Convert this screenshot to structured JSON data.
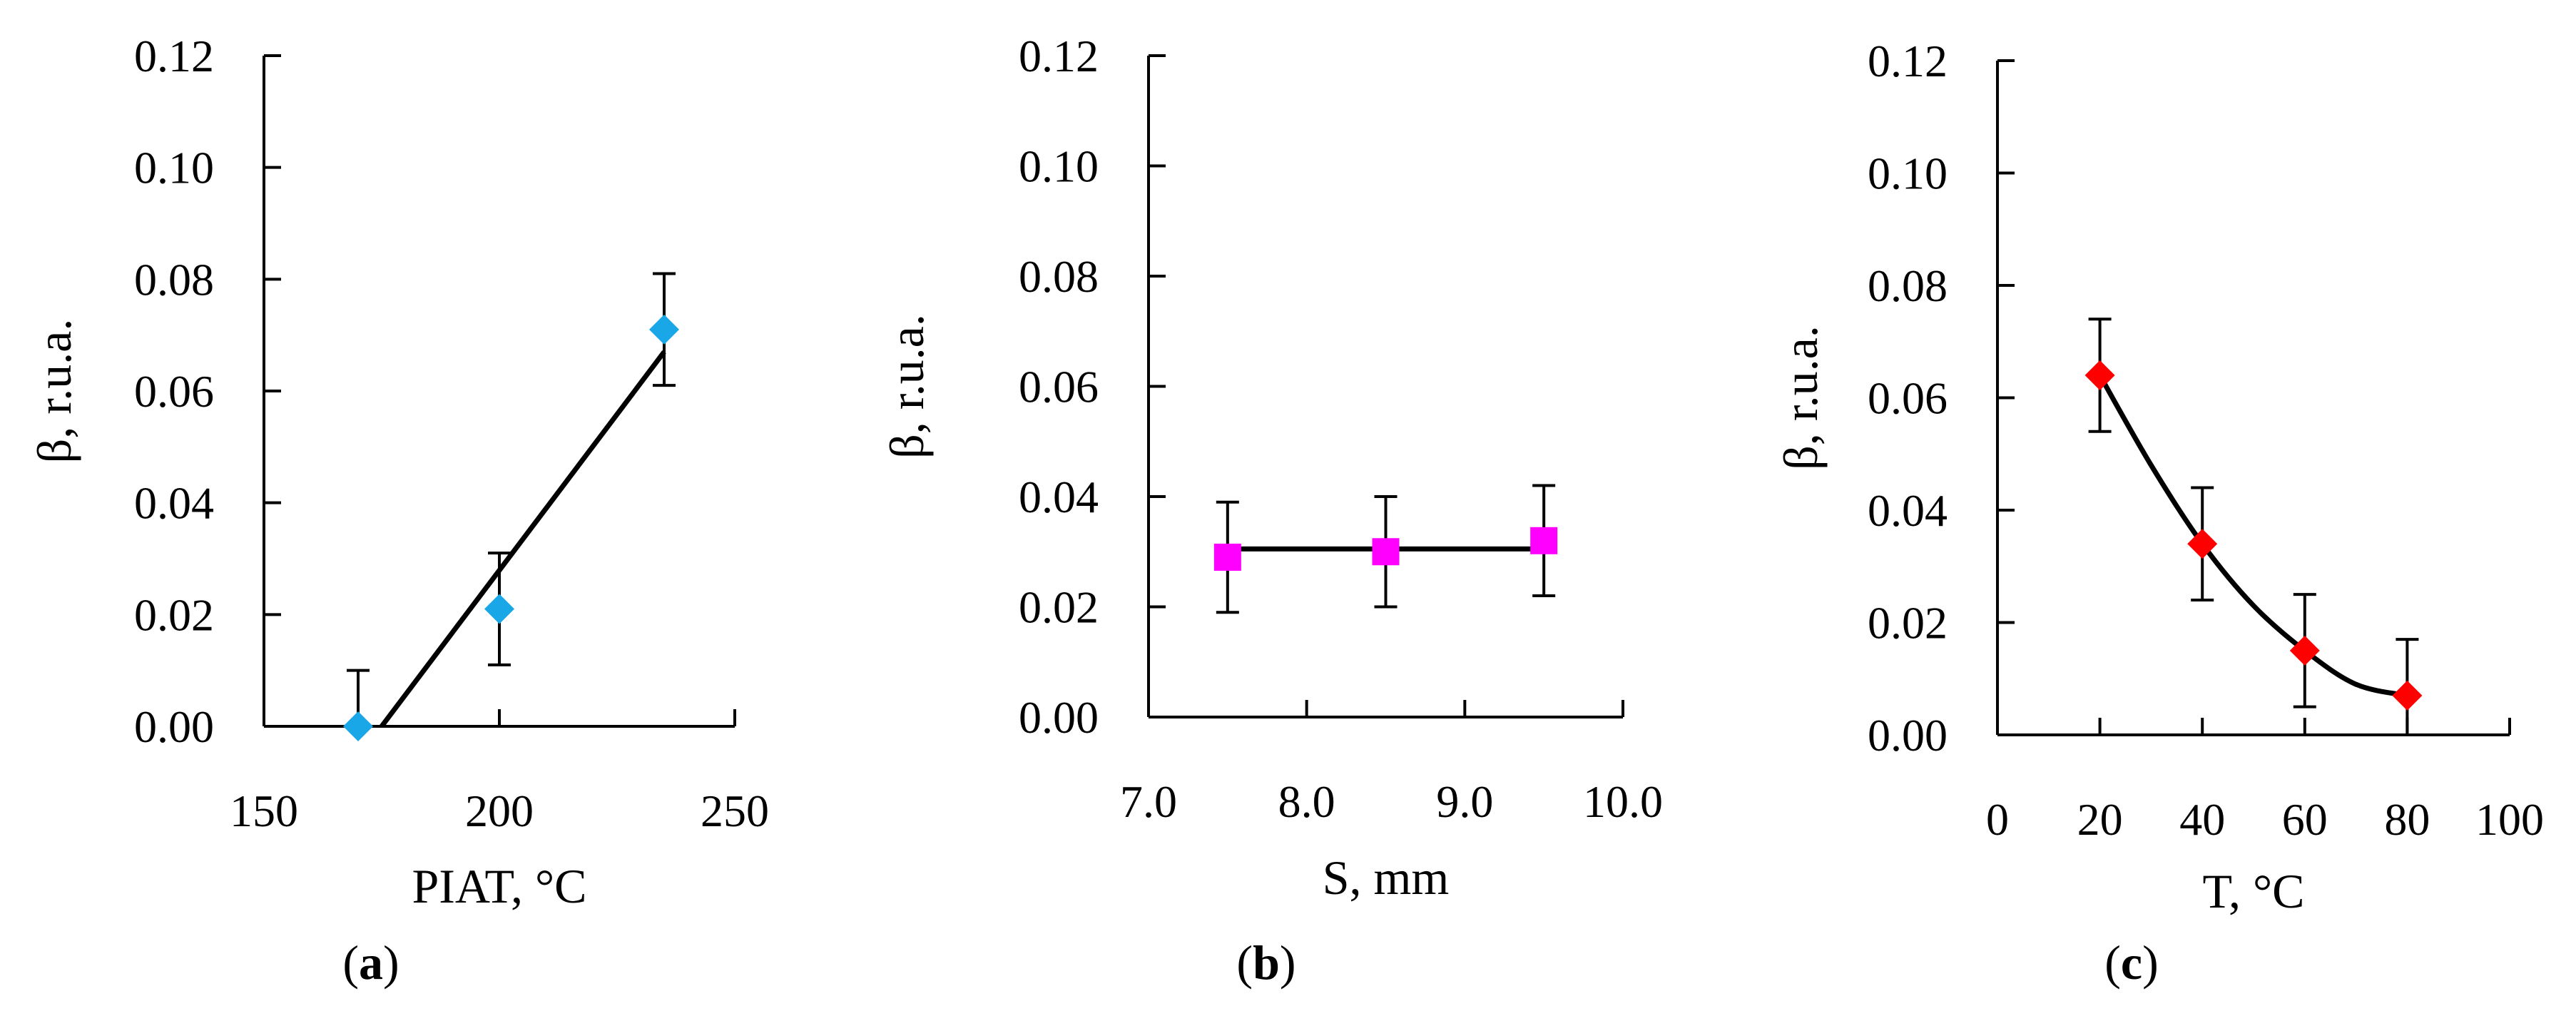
{
  "chart_data": [
    {
      "type": "scatter",
      "panel_label": "a",
      "xlabel": "PIAT, °C",
      "ylabel": "β, r.u.a.",
      "xlim": [
        150,
        250
      ],
      "ylim": [
        0,
        0.12
      ],
      "x_ticks": [
        "150",
        "200",
        "250"
      ],
      "y_ticks": [
        "0.00",
        "0.02",
        "0.04",
        "0.06",
        "0.08",
        "0.10",
        "0.12"
      ],
      "marker": "diamond",
      "marker_color": "#1aa7e8",
      "points": [
        {
          "x": 170,
          "y": 0.0,
          "err": 0.01
        },
        {
          "x": 200,
          "y": 0.021,
          "err": 0.01
        },
        {
          "x": 235,
          "y": 0.071,
          "err": 0.01
        }
      ],
      "fit": {
        "kind": "linear",
        "points": [
          [
            175,
            0.0
          ],
          [
            235,
            0.067
          ]
        ]
      }
    },
    {
      "type": "scatter",
      "panel_label": "b",
      "xlabel": "S, mm",
      "ylabel": "β, r.u.a.",
      "xlim": [
        7.0,
        10.0
      ],
      "ylim": [
        0,
        0.12
      ],
      "x_ticks": [
        "7.0",
        "8.0",
        "9.0",
        "10.0"
      ],
      "y_ticks": [
        "0.00",
        "0.02",
        "0.04",
        "0.06",
        "0.08",
        "0.10",
        "0.12"
      ],
      "marker": "square",
      "marker_color": "#ff00ff",
      "points": [
        {
          "x": 7.5,
          "y": 0.029,
          "err": 0.01
        },
        {
          "x": 8.5,
          "y": 0.03,
          "err": 0.01
        },
        {
          "x": 9.5,
          "y": 0.032,
          "err": 0.01
        }
      ],
      "fit": {
        "kind": "linear",
        "points": [
          [
            7.5,
            0.0305
          ],
          [
            9.5,
            0.0305
          ]
        ]
      }
    },
    {
      "type": "scatter",
      "panel_label": "c",
      "xlabel": "T, °C",
      "ylabel": "β, r.u.a.",
      "xlim": [
        0,
        100
      ],
      "ylim": [
        0,
        0.12
      ],
      "x_ticks": [
        "0",
        "20",
        "40",
        "60",
        "80",
        "100"
      ],
      "y_ticks": [
        "0.00",
        "0.02",
        "0.04",
        "0.06",
        "0.08",
        "0.10",
        "0.12"
      ],
      "marker": "diamond",
      "marker_color": "#ff0000",
      "points": [
        {
          "x": 20,
          "y": 0.064,
          "err": 0.01
        },
        {
          "x": 40,
          "y": 0.034,
          "err": 0.01
        },
        {
          "x": 60,
          "y": 0.015,
          "err": 0.01
        },
        {
          "x": 80,
          "y": 0.007,
          "err": 0.01
        }
      ],
      "fit": {
        "kind": "polynomial",
        "points": [
          [
            20,
            0.064
          ],
          [
            30,
            0.048
          ],
          [
            40,
            0.034
          ],
          [
            50,
            0.023
          ],
          [
            60,
            0.015
          ],
          [
            70,
            0.009
          ],
          [
            80,
            0.007
          ]
        ]
      }
    }
  ]
}
